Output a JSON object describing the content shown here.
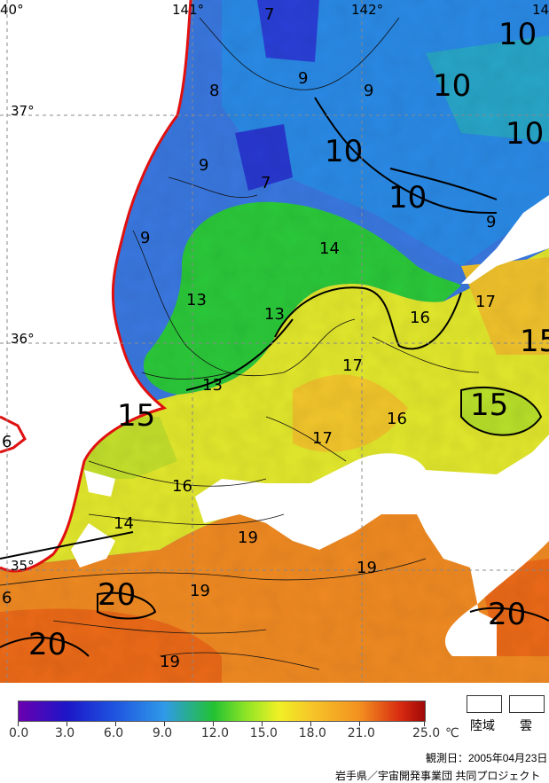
{
  "grid_labels": {
    "lon": [
      "40°",
      "141°",
      "142°",
      "14"
    ],
    "lat": [
      "37°",
      "36°",
      "35°"
    ]
  },
  "isotherm_labels_small": [
    "7",
    "7",
    "8",
    "9",
    "9",
    "9",
    "9",
    "9",
    "13",
    "13",
    "13",
    "14",
    "14",
    "16",
    "16",
    "16",
    "17",
    "17",
    "17",
    "19",
    "19",
    "19",
    "19",
    "6",
    "6"
  ],
  "isotherm_labels_large": [
    "10",
    "10",
    "10",
    "10",
    "10",
    "15",
    "15",
    "15",
    "20",
    "20",
    "20"
  ],
  "colorbar": {
    "min": 0.0,
    "max": 25.0,
    "ticks": [
      "0.0",
      "3.0",
      "6.0",
      "9.0",
      "12.0",
      "15.0",
      "18.0",
      "21.0",
      "25.0"
    ],
    "unit": "℃",
    "colors": [
      "#6a00b0",
      "#1c16c8",
      "#1f56e0",
      "#2f9ae8",
      "#22c232",
      "#8ee426",
      "#f0f025",
      "#f6c628",
      "#f3901f",
      "#d82a10",
      "#a00808"
    ]
  },
  "legend_keys": [
    "陸域",
    "雲"
  ],
  "observation_date": "観測日：2005年04月23日",
  "credit": "岩手県／宇宙開発事業団 共同プロジェクト",
  "colors": {
    "coastline": "#e01010",
    "land": "#ffffff",
    "cloud": "#ffffff"
  }
}
